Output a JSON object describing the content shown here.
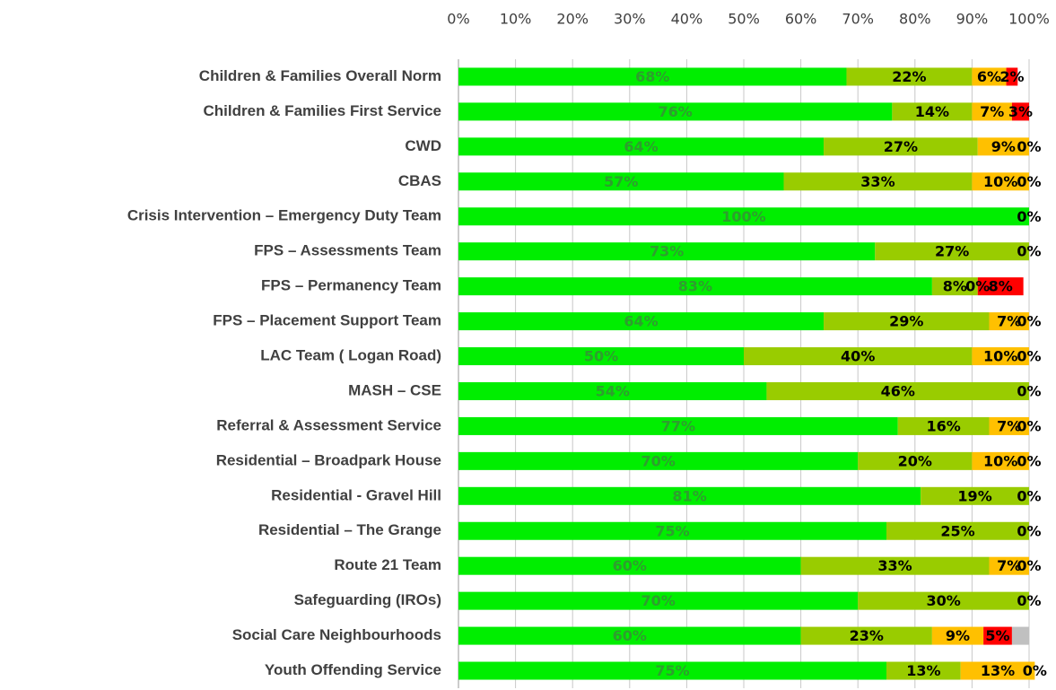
{
  "chart_data": {
    "type": "stacked-bar-horizontal",
    "categories": [
      "Children & Families Overall Norm",
      "Children & Families First Service",
      "CWD",
      "CBAS",
      "Crisis Intervention – Emergency Duty Team",
      "FPS – Assessments Team",
      "FPS – Permanency Team",
      "FPS – Placement Support Team",
      "LAC Team ( Logan Road)",
      "MASH – CSE",
      "Referral & Assessment Service",
      "Residential – Broadpark House",
      "Residential  - Gravel Hill",
      "Residential  – The Grange",
      "Route 21 Team",
      "Safeguarding (IROs)",
      "Social Care Neighbourhoods",
      "Youth Offending Service"
    ],
    "series": [
      {
        "color": "#00ee00",
        "label_color": "#2e9e2e",
        "show_labels": true,
        "values": [
          68,
          76,
          64,
          57,
          100,
          73,
          83,
          64,
          50,
          54,
          77,
          70,
          81,
          75,
          60,
          70,
          60,
          75
        ],
        "value_labels": [
          "68%",
          "76%",
          "64%",
          "57%",
          "100%",
          "73%",
          "83%",
          "64%",
          "50%",
          "54%",
          "77%",
          "70%",
          "81%",
          "75%",
          "60%",
          "70%",
          "60%",
          "75%"
        ]
      },
      {
        "color": "#99cc00",
        "label_color": "#000000",
        "show_labels": true,
        "values": [
          22,
          14,
          27,
          33,
          null,
          27,
          8,
          29,
          40,
          46,
          16,
          20,
          19,
          25,
          33,
          30,
          23,
          13
        ],
        "value_labels": [
          "22%",
          "14%",
          "27%",
          "33%",
          null,
          "27%",
          "8%",
          "29%",
          "40%",
          "46%",
          "16%",
          "20%",
          "19%",
          "25%",
          "33%",
          "30%",
          "23%",
          "13%"
        ]
      },
      {
        "color": "#ffc000",
        "label_color": "#000000",
        "show_labels": true,
        "values": [
          6,
          7,
          9,
          10,
          null,
          null,
          0,
          7,
          10,
          null,
          7,
          10,
          null,
          null,
          7,
          null,
          9,
          13
        ],
        "value_labels": [
          "6%",
          "7%",
          "9%",
          "10%",
          null,
          null,
          "0%",
          "7%",
          "10%",
          null,
          "7%",
          "10%",
          null,
          null,
          "7%",
          null,
          "9%",
          "13%"
        ]
      },
      {
        "color": "#ff0000",
        "label_color": "#000000",
        "show_labels": true,
        "values": [
          2,
          3,
          0,
          0,
          0,
          0,
          8,
          0,
          0,
          0,
          0,
          0,
          0,
          0,
          0,
          0,
          5,
          0
        ],
        "value_labels": [
          "2%",
          "3%",
          "0%",
          "0%",
          "0%",
          "0%",
          "8%",
          "0%",
          "0%",
          "0%",
          "0%",
          "0%",
          "0%",
          "0%",
          "0%",
          "0%",
          "5%",
          "0%"
        ]
      },
      {
        "color": "#c0c0c0",
        "show_labels": false,
        "values": [
          null,
          null,
          null,
          null,
          null,
          null,
          null,
          null,
          null,
          null,
          null,
          null,
          null,
          null,
          null,
          null,
          3,
          null
        ]
      }
    ],
    "xlim": [
      0,
      100
    ],
    "xticks": [
      {
        "value": 0,
        "label": "0%"
      },
      {
        "value": 10,
        "label": "10%"
      },
      {
        "value": 20,
        "label": "20%"
      },
      {
        "value": 30,
        "label": "30%"
      },
      {
        "value": 40,
        "label": "40%"
      },
      {
        "value": 50,
        "label": "50%"
      },
      {
        "value": 60,
        "label": "60%"
      },
      {
        "value": 70,
        "label": "70%"
      },
      {
        "value": 80,
        "label": "80%"
      },
      {
        "value": 90,
        "label": "90%"
      },
      {
        "value": 100,
        "label": "100%"
      }
    ],
    "grid": true
  }
}
